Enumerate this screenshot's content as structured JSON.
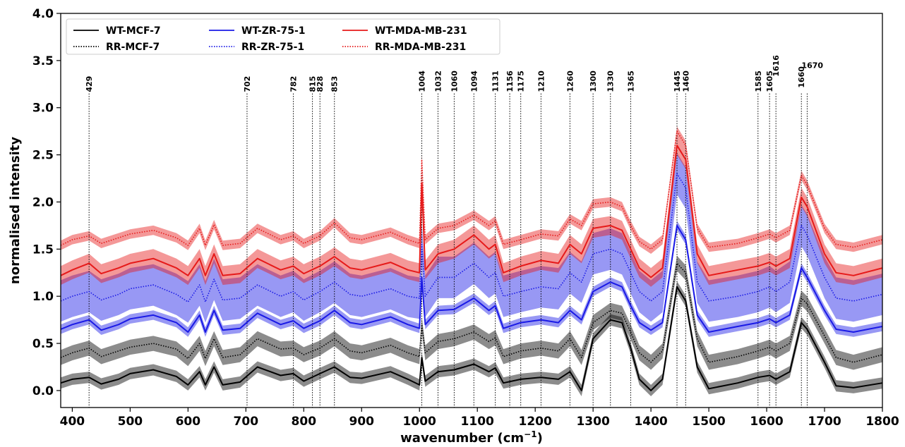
{
  "chart_data": {
    "type": "line",
    "xlabel": "wavenumber (cm",
    "xlabel_sup": "−1",
    "xlabel_close": ")",
    "ylabel": "normalised intensity",
    "xlim": [
      380,
      1800
    ],
    "ylim": [
      -0.18,
      4.0
    ],
    "xticks": [
      400,
      500,
      600,
      700,
      800,
      900,
      1000,
      1100,
      1200,
      1300,
      1400,
      1500,
      1600,
      1700,
      1800
    ],
    "yticks": [
      0.0,
      0.5,
      1.0,
      1.5,
      2.0,
      2.5,
      3.0,
      3.5,
      4.0
    ],
    "grid": false,
    "legend_placement": "top-left",
    "peak_lines": [
      429,
      702,
      782,
      815,
      828,
      853,
      1004,
      1032,
      1060,
      1094,
      1131,
      1156,
      1175,
      1210,
      1260,
      1300,
      1330,
      1365,
      1445,
      1460,
      1585,
      1605,
      1616,
      1660,
      1670
    ],
    "peak_labels": [
      "429",
      "702",
      "782",
      "815",
      "828",
      "853",
      "1004",
      "1032",
      "1060",
      "1094",
      "1131",
      "1156",
      "1175",
      "1210",
      "1260",
      "1300",
      "1330",
      "1365",
      "1445",
      "1460",
      "1585",
      "1605",
      "1616",
      "1660",
      "1670"
    ],
    "series": [
      {
        "name": "WT-MCF-7",
        "color": "#000000",
        "style": "solid",
        "band": 0.06,
        "x": [
          380,
          400,
          429,
          450,
          480,
          500,
          540,
          580,
          600,
          620,
          630,
          645,
          660,
          690,
          720,
          760,
          782,
          800,
          828,
          853,
          880,
          900,
          950,
          980,
          1000,
          1004,
          1010,
          1032,
          1060,
          1094,
          1120,
          1131,
          1145,
          1175,
          1210,
          1240,
          1260,
          1280,
          1300,
          1330,
          1350,
          1365,
          1380,
          1400,
          1420,
          1445,
          1460,
          1480,
          1500,
          1550,
          1585,
          1605,
          1616,
          1640,
          1660,
          1670,
          1700,
          1720,
          1750,
          1800
        ],
        "y": [
          0.08,
          0.12,
          0.14,
          0.07,
          0.12,
          0.18,
          0.22,
          0.15,
          0.06,
          0.2,
          0.06,
          0.25,
          0.06,
          0.09,
          0.25,
          0.16,
          0.18,
          0.1,
          0.18,
          0.25,
          0.14,
          0.13,
          0.2,
          0.12,
          0.06,
          0.35,
          0.1,
          0.2,
          0.22,
          0.28,
          0.2,
          0.24,
          0.08,
          0.12,
          0.14,
          0.12,
          0.2,
          0.0,
          0.55,
          0.75,
          0.72,
          0.45,
          0.12,
          0.0,
          0.12,
          1.1,
          0.95,
          0.25,
          0.02,
          0.08,
          0.14,
          0.16,
          0.12,
          0.2,
          0.72,
          0.65,
          0.3,
          0.05,
          0.03,
          0.08
        ]
      },
      {
        "name": "RR-MCF-7",
        "color": "#000000",
        "style": "dotted",
        "band": 0.08,
        "x": [
          380,
          400,
          429,
          450,
          480,
          500,
          540,
          580,
          600,
          620,
          630,
          645,
          660,
          690,
          720,
          760,
          782,
          800,
          828,
          853,
          880,
          900,
          950,
          980,
          1000,
          1004,
          1010,
          1032,
          1060,
          1094,
          1120,
          1131,
          1145,
          1175,
          1210,
          1240,
          1260,
          1280,
          1300,
          1330,
          1350,
          1365,
          1380,
          1400,
          1420,
          1445,
          1460,
          1480,
          1500,
          1550,
          1585,
          1605,
          1616,
          1640,
          1660,
          1670,
          1700,
          1720,
          1750,
          1800
        ],
        "y": [
          0.35,
          0.4,
          0.45,
          0.36,
          0.42,
          0.46,
          0.5,
          0.44,
          0.34,
          0.5,
          0.34,
          0.55,
          0.35,
          0.38,
          0.55,
          0.44,
          0.45,
          0.38,
          0.45,
          0.55,
          0.42,
          0.4,
          0.48,
          0.4,
          0.36,
          0.7,
          0.4,
          0.52,
          0.55,
          0.62,
          0.52,
          0.56,
          0.36,
          0.42,
          0.45,
          0.42,
          0.55,
          0.35,
          0.72,
          0.85,
          0.82,
          0.62,
          0.4,
          0.3,
          0.42,
          1.35,
          1.25,
          0.55,
          0.3,
          0.36,
          0.42,
          0.46,
          0.42,
          0.5,
          0.98,
          0.92,
          0.58,
          0.35,
          0.3,
          0.38
        ]
      },
      {
        "name": "WT-ZR-75-1",
        "color": "#1a1ae6",
        "style": "solid",
        "band": 0.05,
        "x": [
          380,
          400,
          429,
          450,
          480,
          500,
          540,
          580,
          600,
          620,
          630,
          645,
          660,
          690,
          720,
          760,
          782,
          800,
          828,
          853,
          880,
          900,
          950,
          980,
          1000,
          1004,
          1010,
          1032,
          1060,
          1094,
          1120,
          1131,
          1145,
          1175,
          1210,
          1240,
          1260,
          1280,
          1300,
          1330,
          1350,
          1365,
          1380,
          1400,
          1420,
          1445,
          1460,
          1480,
          1500,
          1550,
          1585,
          1605,
          1616,
          1640,
          1660,
          1670,
          1700,
          1720,
          1750,
          1800
        ],
        "y": [
          0.65,
          0.7,
          0.75,
          0.64,
          0.7,
          0.76,
          0.8,
          0.72,
          0.62,
          0.8,
          0.62,
          0.85,
          0.64,
          0.66,
          0.82,
          0.7,
          0.74,
          0.66,
          0.74,
          0.85,
          0.72,
          0.7,
          0.78,
          0.7,
          0.66,
          1.2,
          0.7,
          0.85,
          0.86,
          0.98,
          0.85,
          0.9,
          0.66,
          0.72,
          0.75,
          0.72,
          0.85,
          0.75,
          1.05,
          1.15,
          1.1,
          0.9,
          0.72,
          0.64,
          0.72,
          1.75,
          1.6,
          0.8,
          0.62,
          0.68,
          0.72,
          0.76,
          0.72,
          0.8,
          1.3,
          1.2,
          0.85,
          0.65,
          0.62,
          0.68
        ]
      },
      {
        "name": "RR-ZR-75-1",
        "color": "#1a1ae6",
        "style": "dotted",
        "band": 0.22,
        "x": [
          380,
          400,
          429,
          450,
          480,
          500,
          540,
          580,
          600,
          620,
          630,
          645,
          660,
          690,
          720,
          760,
          782,
          800,
          828,
          853,
          880,
          900,
          950,
          980,
          1000,
          1004,
          1010,
          1032,
          1060,
          1094,
          1120,
          1131,
          1145,
          1175,
          1210,
          1240,
          1260,
          1280,
          1300,
          1330,
          1350,
          1365,
          1380,
          1400,
          1420,
          1445,
          1460,
          1480,
          1500,
          1550,
          1585,
          1605,
          1616,
          1640,
          1660,
          1670,
          1700,
          1720,
          1750,
          1800
        ],
        "y": [
          0.95,
          1.0,
          1.05,
          0.96,
          1.02,
          1.08,
          1.12,
          1.02,
          0.94,
          1.12,
          0.94,
          1.18,
          0.96,
          0.98,
          1.12,
          1.0,
          1.05,
          0.96,
          1.05,
          1.15,
          1.02,
          1.0,
          1.08,
          1.0,
          0.98,
          1.55,
          1.0,
          1.2,
          1.2,
          1.35,
          1.2,
          1.25,
          1.0,
          1.05,
          1.1,
          1.08,
          1.25,
          1.15,
          1.45,
          1.5,
          1.45,
          1.25,
          1.05,
          0.95,
          1.05,
          2.3,
          2.15,
          1.15,
          0.95,
          1.0,
          1.05,
          1.1,
          1.05,
          1.15,
          1.75,
          1.65,
          1.2,
          0.98,
          0.95,
          1.02
        ]
      },
      {
        "name": "WT-MDA-MB-231",
        "color": "#e61a1a",
        "style": "solid",
        "band": 0.1,
        "x": [
          380,
          400,
          429,
          450,
          480,
          500,
          540,
          580,
          600,
          620,
          630,
          645,
          660,
          690,
          720,
          760,
          782,
          800,
          828,
          853,
          880,
          900,
          950,
          980,
          1000,
          1004,
          1010,
          1032,
          1060,
          1094,
          1120,
          1131,
          1145,
          1175,
          1210,
          1240,
          1260,
          1280,
          1300,
          1330,
          1350,
          1365,
          1380,
          1400,
          1420,
          1445,
          1460,
          1480,
          1500,
          1550,
          1585,
          1605,
          1616,
          1640,
          1660,
          1670,
          1700,
          1720,
          1750,
          1800
        ],
        "y": [
          1.22,
          1.28,
          1.35,
          1.24,
          1.3,
          1.35,
          1.4,
          1.3,
          1.22,
          1.4,
          1.22,
          1.45,
          1.22,
          1.24,
          1.4,
          1.28,
          1.32,
          1.24,
          1.32,
          1.42,
          1.3,
          1.28,
          1.36,
          1.28,
          1.25,
          2.2,
          1.28,
          1.45,
          1.5,
          1.65,
          1.5,
          1.55,
          1.25,
          1.32,
          1.38,
          1.35,
          1.55,
          1.45,
          1.72,
          1.75,
          1.7,
          1.5,
          1.3,
          1.2,
          1.3,
          2.6,
          2.45,
          1.45,
          1.22,
          1.28,
          1.32,
          1.36,
          1.32,
          1.4,
          2.05,
          1.95,
          1.45,
          1.25,
          1.22,
          1.3
        ]
      },
      {
        "name": "RR-MDA-MB-231",
        "color": "#e61a1a",
        "style": "dotted",
        "band": 0.05,
        "x": [
          380,
          400,
          429,
          450,
          480,
          500,
          540,
          580,
          600,
          620,
          630,
          645,
          660,
          690,
          720,
          760,
          782,
          800,
          828,
          853,
          880,
          900,
          950,
          980,
          1000,
          1004,
          1010,
          1032,
          1060,
          1094,
          1120,
          1131,
          1145,
          1175,
          1210,
          1240,
          1260,
          1280,
          1300,
          1330,
          1350,
          1365,
          1380,
          1400,
          1420,
          1445,
          1460,
          1480,
          1500,
          1550,
          1585,
          1605,
          1616,
          1640,
          1660,
          1670,
          1700,
          1720,
          1750,
          1800
        ],
        "y": [
          1.54,
          1.6,
          1.64,
          1.56,
          1.62,
          1.66,
          1.7,
          1.62,
          1.54,
          1.72,
          1.54,
          1.76,
          1.54,
          1.56,
          1.72,
          1.6,
          1.64,
          1.56,
          1.64,
          1.78,
          1.62,
          1.6,
          1.68,
          1.6,
          1.56,
          2.45,
          1.6,
          1.72,
          1.75,
          1.86,
          1.75,
          1.8,
          1.55,
          1.6,
          1.66,
          1.64,
          1.82,
          1.75,
          1.98,
          2.0,
          1.95,
          1.75,
          1.58,
          1.5,
          1.6,
          2.75,
          2.6,
          1.72,
          1.52,
          1.56,
          1.62,
          1.66,
          1.62,
          1.7,
          2.28,
          2.18,
          1.72,
          1.55,
          1.52,
          1.6
        ]
      }
    ]
  }
}
